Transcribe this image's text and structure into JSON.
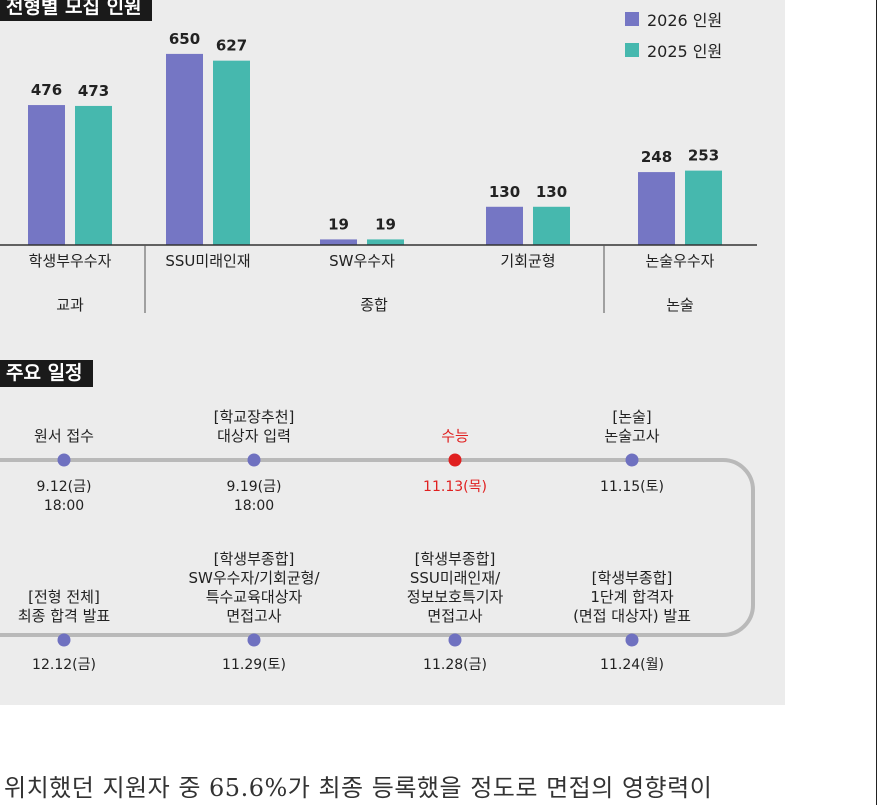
{
  "section_title": "전형별 모집 인원",
  "schedule_title": "주요 일정",
  "chart_data": {
    "type": "bar",
    "categories": [
      "학생부우수자",
      "SSU미래인재",
      "SW우수자",
      "기회균형",
      "논술우수자"
    ],
    "groups": [
      {
        "label": "교과",
        "categories": [
          "학생부우수자"
        ]
      },
      {
        "label": "종합",
        "categories": [
          "SSU미래인재",
          "SW우수자",
          "기회균형"
        ]
      },
      {
        "label": "논술",
        "categories": [
          "논술우수자"
        ]
      }
    ],
    "series": [
      {
        "name": "2026 인원",
        "color": "#7576c4",
        "values": [
          476,
          650,
          19,
          130,
          248
        ]
      },
      {
        "name": "2025 인원",
        "color": "#46b8ae",
        "values": [
          473,
          627,
          19,
          130,
          253
        ]
      }
    ],
    "ylim": [
      0,
      700
    ],
    "legend": "top-right",
    "grid": false
  },
  "schedule": {
    "top_row": [
      {
        "label": [
          "원서 접수"
        ],
        "date": [
          "9.12(금)",
          "18:00"
        ],
        "highlight": false
      },
      {
        "label": [
          "[학교장추천]",
          "대상자 입력"
        ],
        "date": [
          "9.19(금)",
          "18:00"
        ],
        "highlight": false
      },
      {
        "label": [
          "수능"
        ],
        "date": [
          "11.13(목)"
        ],
        "highlight": true
      },
      {
        "label": [
          "[논술]",
          "논술고사"
        ],
        "date": [
          "11.15(토)"
        ],
        "highlight": false
      }
    ],
    "bottom_row": [
      {
        "label": [
          "[전형 전체]",
          "최종 합격 발표"
        ],
        "date": [
          "12.12(금)"
        ],
        "highlight": false
      },
      {
        "label": [
          "[학생부종합]",
          "SW우수자/기회균형/",
          "특수교육대상자",
          "면접고사"
        ],
        "date": [
          "11.29(토)"
        ],
        "highlight": false
      },
      {
        "label": [
          "[학생부종합]",
          "SSU미래인재/",
          "정보보호특기자",
          "면접고사"
        ],
        "date": [
          "11.28(금)"
        ],
        "highlight": false
      },
      {
        "label": [
          "[학생부종합]",
          "1단계 합격자",
          "(면접 대상자) 발표"
        ],
        "date": [
          "11.24(월)"
        ],
        "highlight": false
      }
    ]
  },
  "colors": {
    "highlight": "#e02020",
    "dot": "#6f71c0",
    "track": "#b9b9b9"
  },
  "body_text": "위치했던 지원자 중 65.6%가 최종 등록했을 정도로 면접의 영향력이"
}
